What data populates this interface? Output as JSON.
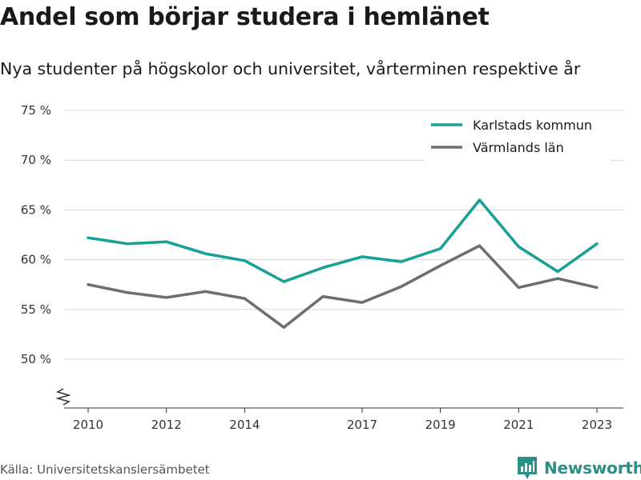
{
  "header": {
    "title": "Andel som börjar studera i hemlänet",
    "subtitle": "Nya studenter på högskolor och universitet, vårterminen respektive år"
  },
  "footer": {
    "source": "Källa: Universitetskanslersämbetet",
    "brand": "Newsworthy"
  },
  "chart_data": {
    "type": "line",
    "title": "Andel som börjar studera i hemlänet",
    "subtitle": "Nya studenter på högskolor och universitet, vårterminen respektive år",
    "x": [
      2010,
      2011,
      2012,
      2013,
      2014,
      2015,
      2016,
      2017,
      2018,
      2019,
      2020,
      2021,
      2022,
      2023
    ],
    "x_tick_labels": [
      "2010",
      "2012",
      "2014",
      "2017",
      "2019",
      "2021",
      "2023"
    ],
    "y_tick_labels": [
      "50 %",
      "55 %",
      "60 %",
      "65 %",
      "70 %",
      "75 %"
    ],
    "ylim": [
      45,
      75
    ],
    "y_axis_break": true,
    "grid": true,
    "legend_position": "top-right",
    "series": [
      {
        "name": "Karlstads kommun",
        "color": "#16a096",
        "values": [
          62.2,
          61.6,
          61.8,
          60.6,
          59.9,
          57.8,
          59.2,
          60.3,
          59.8,
          61.1,
          66.0,
          61.3,
          58.8,
          61.6
        ]
      },
      {
        "name": "Värmlands län",
        "color": "#6e6d73",
        "values": [
          57.5,
          56.7,
          56.2,
          56.8,
          56.1,
          53.2,
          56.3,
          55.7,
          57.3,
          59.4,
          61.4,
          57.2,
          58.1,
          57.2
        ]
      }
    ]
  }
}
